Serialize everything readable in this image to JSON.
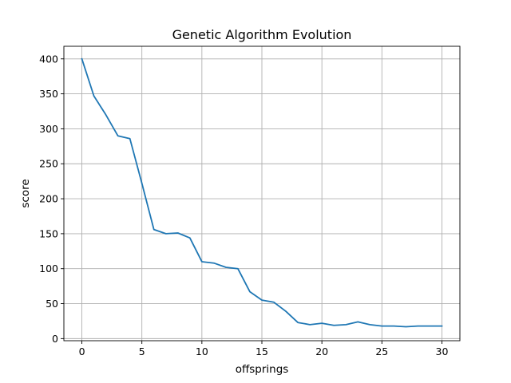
{
  "chart_data": {
    "type": "line",
    "title": "Genetic Algorithm Evolution",
    "xlabel": "offsprings",
    "ylabel": "score",
    "xlim": [
      -1.5,
      31.5
    ],
    "ylim": [
      -3,
      418
    ],
    "grid": true,
    "xticks": [
      0,
      5,
      10,
      15,
      20,
      25,
      30
    ],
    "yticks": [
      0,
      50,
      100,
      150,
      200,
      250,
      300,
      350,
      400
    ],
    "series": [
      {
        "color": "#1f77b4",
        "x": [
          0,
          1,
          2,
          3,
          4,
          5,
          6,
          7,
          8,
          9,
          10,
          11,
          12,
          13,
          14,
          15,
          16,
          17,
          18,
          19,
          20,
          21,
          22,
          23,
          24,
          25,
          26,
          27,
          28,
          29,
          30
        ],
        "y": [
          400,
          347,
          320,
          290,
          286,
          222,
          156,
          150,
          151,
          144,
          110,
          108,
          102,
          100,
          67,
          55,
          52,
          39,
          23,
          20,
          22,
          19,
          20,
          24,
          20,
          18,
          18,
          17,
          18,
          18,
          18
        ]
      }
    ]
  }
}
